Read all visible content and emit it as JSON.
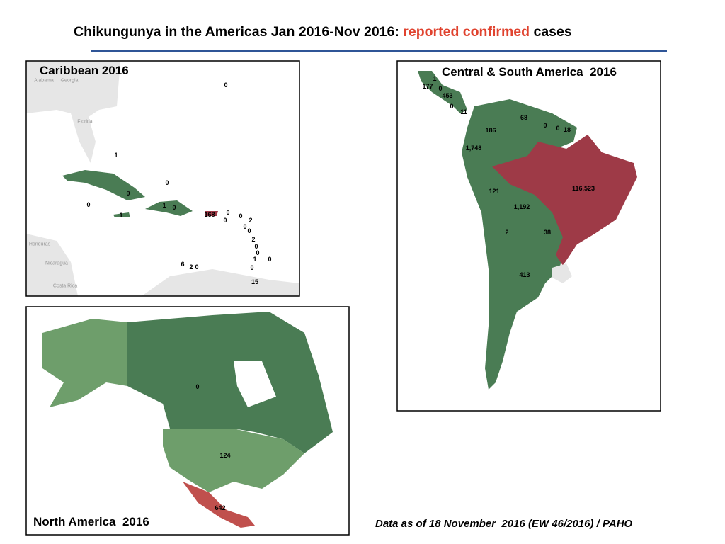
{
  "header": {
    "title": "Chikungunya in the Americas Jan 2016-Nov 2016:",
    "title_highlight": "reported confirmed",
    "title_end": "cases"
  },
  "panels": [
    {
      "title": "Caribbean 2016",
      "place_names": [
        "Alabama",
        "Georgia",
        "Florida",
        "Honduras",
        "Nicaragua",
        "Costa Rica"
      ],
      "labels": [
        "0",
        "1",
        "0",
        "0",
        "0",
        "1",
        "0",
        "1",
        "168",
        "0",
        "0",
        "0",
        "2",
        "0",
        "0",
        "2",
        "0",
        "0",
        "1",
        "0",
        "0",
        "6",
        "2",
        "0",
        "15"
      ]
    },
    {
      "title": "Central & South America  2016",
      "labels": [
        "1",
        "177",
        "0",
        "453",
        "0",
        "11",
        "68",
        "0",
        "0",
        "18",
        "186",
        "1,748",
        "116,523",
        "121",
        "1,192",
        "2",
        "38",
        "413"
      ]
    },
    {
      "title": "North America  2016",
      "labels": [
        "0",
        "124",
        "642"
      ]
    }
  ],
  "footer": "Data as of 18 November  2016 (EW 46/2016) / PAHO"
}
